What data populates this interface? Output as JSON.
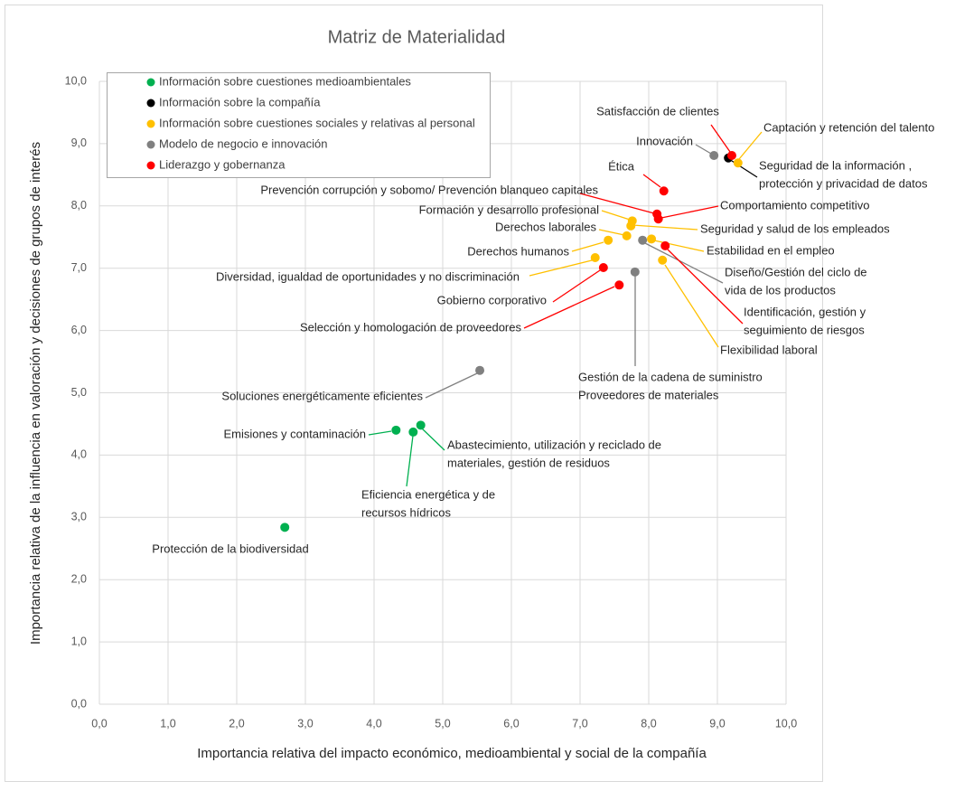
{
  "chart_data": {
    "type": "scatter",
    "title": "Matriz de Materialidad",
    "xlabel": "Importancia relativa del impacto económico, medioambiental y social de la compañía",
    "ylabel": "Importancia relativa de la influencia en valoración y decisiones de grupos de interés",
    "xlim": [
      0,
      10
    ],
    "ylim": [
      0,
      10
    ],
    "xticks": [
      {
        "value": 0,
        "label": "0,0"
      },
      {
        "value": 1,
        "label": "1,0"
      },
      {
        "value": 2,
        "label": "2,0"
      },
      {
        "value": 3,
        "label": "3,0"
      },
      {
        "value": 4,
        "label": "4,0"
      },
      {
        "value": 5,
        "label": "5,0"
      },
      {
        "value": 6,
        "label": "6,0"
      },
      {
        "value": 7,
        "label": "7,0"
      },
      {
        "value": 8,
        "label": "8,0"
      },
      {
        "value": 9,
        "label": "9,0"
      },
      {
        "value": 10,
        "label": "10,0"
      }
    ],
    "yticks": [
      {
        "value": 0,
        "label": "0,0"
      },
      {
        "value": 1,
        "label": "1,0"
      },
      {
        "value": 2,
        "label": "2,0"
      },
      {
        "value": 3,
        "label": "3,0"
      },
      {
        "value": 4,
        "label": "4,0"
      },
      {
        "value": 5,
        "label": "5,0"
      },
      {
        "value": 6,
        "label": "6,0"
      },
      {
        "value": 7,
        "label": "7,0"
      },
      {
        "value": 8,
        "label": "8,0"
      },
      {
        "value": 9,
        "label": "9,0"
      },
      {
        "value": 10,
        "label": "10,0"
      }
    ],
    "grid": true,
    "legend": "upper left",
    "series": [
      {
        "name": "Información sobre cuestiones medioambientales",
        "color": "#00b050",
        "x": [
          4.32,
          4.57,
          4.68,
          2.7
        ],
        "y": [
          4.4,
          4.37,
          4.48,
          2.84
        ],
        "labels": [
          [
            "Emisiones y contaminación"
          ],
          [
            "Eficiencia energética y de",
            "recursos hídricos"
          ],
          [
            "Abastecimiento, utilización y reciclado de",
            "materiales, gestión de residuos"
          ],
          [
            "Protección de la biodiversidad"
          ]
        ]
      },
      {
        "name": "Información sobre la compañía",
        "color": "#000000",
        "x": [
          9.16
        ],
        "y": [
          8.77
        ],
        "labels": [
          [
            "Seguridad de la información ,",
            "protección y privacidad de datos"
          ]
        ]
      },
      {
        "name": "Información sobre cuestiones sociales y relativas al personal",
        "color": "#ffc000",
        "x": [
          9.3,
          7.76,
          7.74,
          7.68,
          7.41,
          8.04,
          7.22,
          8.2
        ],
        "y": [
          8.69,
          7.76,
          7.68,
          7.52,
          7.45,
          7.47,
          7.17,
          7.13
        ],
        "labels": [
          [
            "Captación y retención del talento"
          ],
          [
            "Formación y desarrollo profesional"
          ],
          [
            "Seguridad y salud de los empleados"
          ],
          [
            "Derechos laborales"
          ],
          [
            "Derechos humanos"
          ],
          [
            "Estabilidad en el empleo"
          ],
          [
            "Diversidad, igualdad de oportunidades y no discriminación"
          ],
          [
            "Flexibilidad laboral"
          ]
        ]
      },
      {
        "name": "Modelo de negocio e innovación",
        "color": "#808080",
        "x": [
          8.95,
          7.91,
          7.8,
          5.54
        ],
        "y": [
          8.81,
          7.45,
          6.94,
          5.36
        ],
        "labels": [
          [
            "Innovación"
          ],
          [
            "Diseño/Gestión del ciclo de",
            "vida de los productos"
          ],
          [
            "Gestión de la cadena de suministro",
            "Proveedores de materiales"
          ],
          [
            "Soluciones energéticamente eficientes"
          ]
        ]
      },
      {
        "name": "Liderazgo y gobernanza",
        "color": "#ff0000",
        "x": [
          9.21,
          8.22,
          8.12,
          8.14,
          8.24,
          7.34,
          7.57
        ],
        "y": [
          8.81,
          8.24,
          7.87,
          7.79,
          7.36,
          7.01,
          6.73
        ],
        "labels": [
          [
            "Satisfacción de clientes"
          ],
          [
            "Ética"
          ],
          [
            "Prevención corrupción y sobomo/ Prevención blanqueo capitales"
          ],
          [
            "Comportamiento competitivo"
          ],
          [
            "Identificación, gestión y",
            "seguimiento de riesgos"
          ],
          [
            "Gobierno corporativo"
          ],
          [
            "Selección y homologación de proveedores"
          ]
        ]
      }
    ]
  }
}
